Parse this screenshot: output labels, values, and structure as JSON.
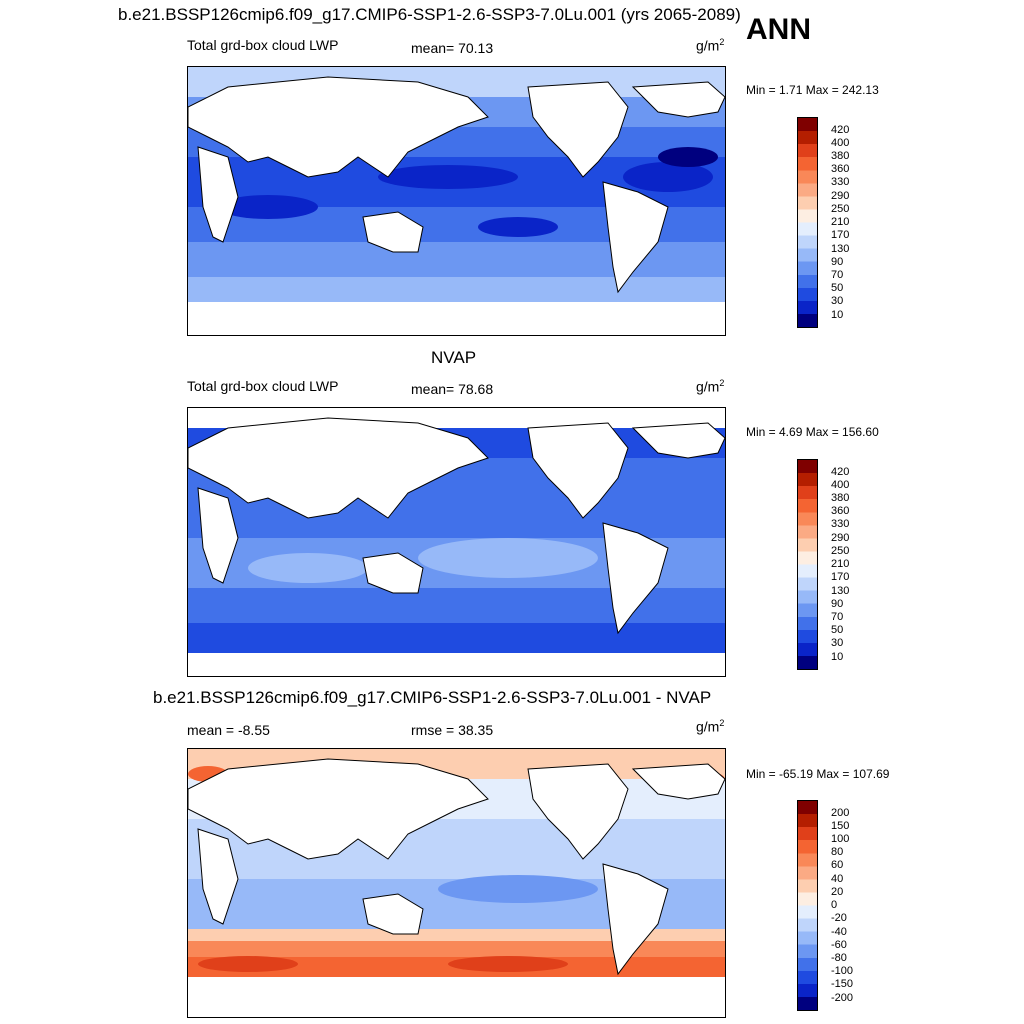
{
  "header": {
    "title": "b.e21.BSSP126cmip6.f09_g17.CMIP6-SSP1-2.6-SSP3-7.0Lu.001 (yrs 2065-2089)",
    "season": "ANN"
  },
  "panels": [
    {
      "id": "model",
      "title": "",
      "left_label": "Total grd-box cloud LWP",
      "center_label": "mean=  70.13",
      "unit": "g/m",
      "unit_sup": "2",
      "minmax": "Min =   1.71 Max = 242.13",
      "colorbar_labels": [
        "420",
        "400",
        "380",
        "360",
        "330",
        "290",
        "250",
        "210",
        "170",
        "130",
        "90",
        "70",
        "50",
        "30",
        "10"
      ],
      "colorbar_colors": [
        "#7f0000",
        "#b41e00",
        "#e0401a",
        "#f46432",
        "#f98858",
        "#fbaa84",
        "#fdceb0",
        "#fdeee2",
        "#e4eefd",
        "#bfd5fb",
        "#97b9f8",
        "#6c97f2",
        "#4171ea",
        "#1f4be0",
        "#0a24c8",
        "#00007f"
      ]
    },
    {
      "id": "obs",
      "title": "NVAP",
      "left_label": "Total grd-box cloud LWP",
      "center_label": "mean=  78.68",
      "unit": "g/m",
      "unit_sup": "2",
      "minmax": "Min =   4.69 Max = 156.60",
      "colorbar_labels": [
        "420",
        "400",
        "380",
        "360",
        "330",
        "290",
        "250",
        "210",
        "170",
        "130",
        "90",
        "70",
        "50",
        "30",
        "10"
      ],
      "colorbar_colors": [
        "#7f0000",
        "#b41e00",
        "#e0401a",
        "#f46432",
        "#f98858",
        "#fbaa84",
        "#fdceb0",
        "#fdeee2",
        "#e4eefd",
        "#bfd5fb",
        "#97b9f8",
        "#6c97f2",
        "#4171ea",
        "#1f4be0",
        "#0a24c8",
        "#00007f"
      ]
    },
    {
      "id": "diff",
      "title": "b.e21.BSSP126cmip6.f09_g17.CMIP6-SSP1-2.6-SSP3-7.0Lu.001 - NVAP",
      "left_label": "mean =  -8.55",
      "center_label": "rmse =  38.35",
      "unit": "g/m",
      "unit_sup": "2",
      "minmax": "Min = -65.19 Max = 107.69",
      "colorbar_labels": [
        "200",
        "150",
        "100",
        "80",
        "60",
        "40",
        "20",
        "0",
        "-20",
        "-40",
        "-60",
        "-80",
        "-100",
        "-150",
        "-200"
      ],
      "colorbar_colors": [
        "#7f0000",
        "#b41e00",
        "#e0401a",
        "#f46432",
        "#f98858",
        "#fbaa84",
        "#fdceb0",
        "#fdeee2",
        "#e4eefd",
        "#bfd5fb",
        "#97b9f8",
        "#6c97f2",
        "#4171ea",
        "#1f4be0",
        "#0a24c8",
        "#00007f"
      ]
    }
  ]
}
